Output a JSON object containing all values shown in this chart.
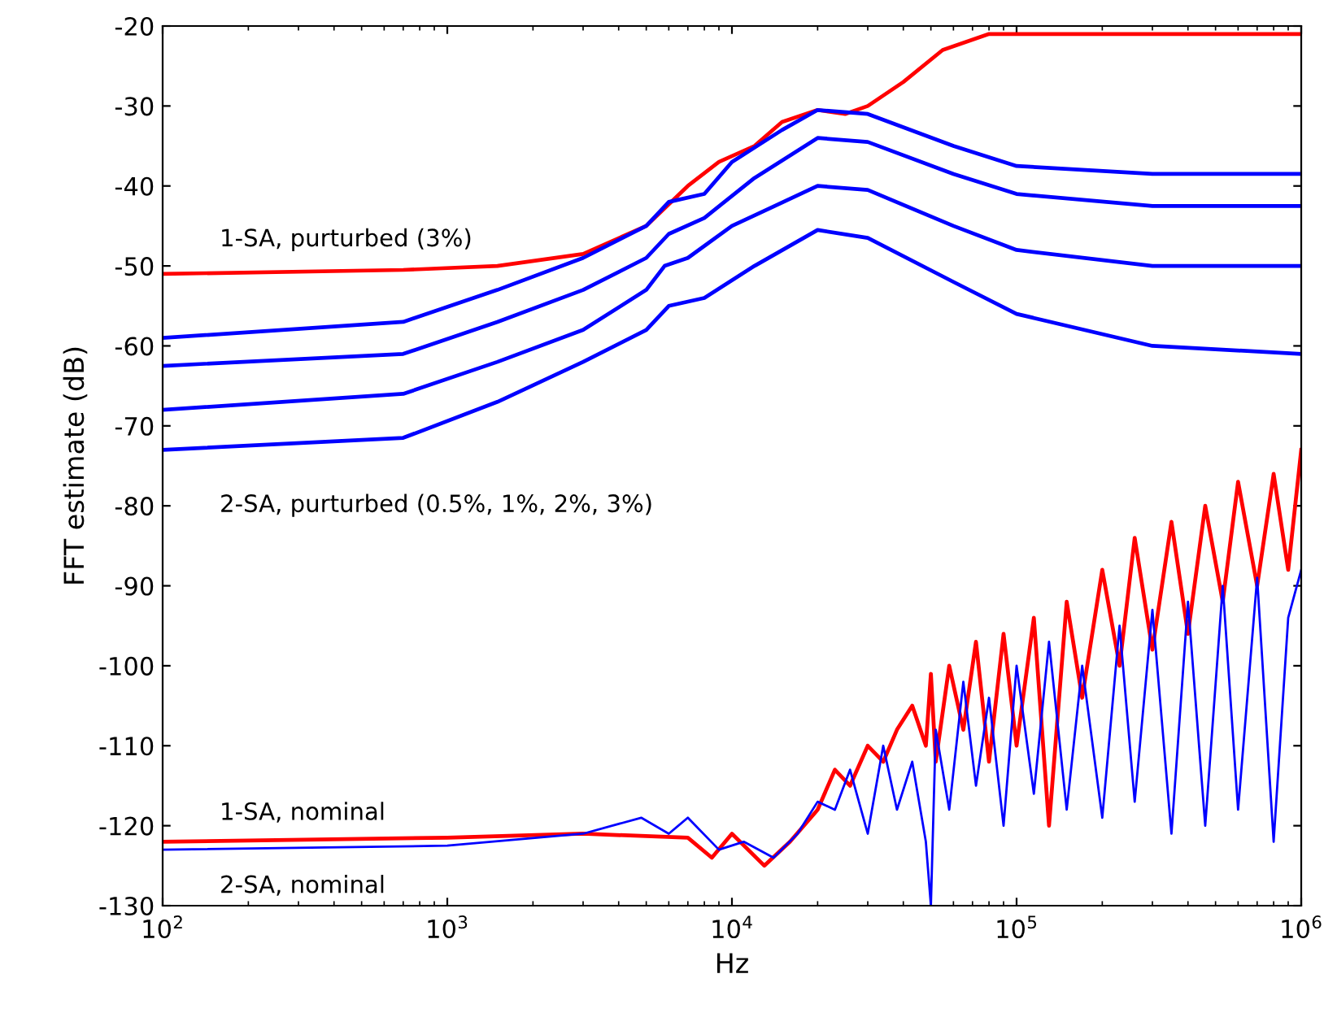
{
  "chart_data": {
    "type": "line",
    "xlabel": "Hz",
    "ylabel": "FFT estimate (dB)",
    "log": "x",
    "grid": false,
    "legend": false,
    "xlim": [
      100,
      1000000
    ],
    "xticks": [
      {
        "value": 100,
        "label": "10$^{2}$"
      },
      {
        "value": 1000,
        "label": "10$^{3}$"
      },
      {
        "value": 10000,
        "label": "10$^{4}$"
      },
      {
        "value": 100000,
        "label": "10$^{5}$"
      },
      {
        "value": 1000000,
        "label": "10$^{6}$"
      }
    ],
    "ylim": [
      -130,
      -20
    ],
    "yticks": [
      -130,
      -120,
      -110,
      -100,
      -90,
      -80,
      -70,
      -60,
      -50,
      -40,
      -30,
      -20
    ],
    "series": [
      {
        "color": "#ff0000",
        "x": [
          100,
          700,
          1500,
          3000,
          5000,
          7000,
          9000,
          12000,
          15000,
          20000,
          25000,
          30000,
          40000,
          55000,
          80000,
          1000000
        ],
        "values": [
          -51,
          -50.5,
          -50,
          -48.5,
          -45,
          -40,
          -37,
          -35,
          -32,
          -30.5,
          -31,
          -30,
          -27,
          -23,
          -21,
          -21
        ]
      },
      {
        "color": "#0000ff",
        "x": [
          100,
          700,
          1500,
          3000,
          5000,
          6000,
          8000,
          10000,
          15000,
          20000,
          30000,
          60000,
          100000,
          300000,
          1000000
        ],
        "values": [
          -59,
          -57,
          -53,
          -49,
          -45,
          -42,
          -41,
          -37,
          -33,
          -30.5,
          -31,
          -35,
          -37.5,
          -38.5,
          -38.5
        ]
      },
      {
        "color": "#0000ff",
        "x": [
          100,
          700,
          1500,
          3000,
          5000,
          6000,
          8000,
          12000,
          20000,
          30000,
          60000,
          100000,
          300000,
          1000000
        ],
        "values": [
          -62.5,
          -61,
          -57,
          -53,
          -49,
          -46,
          -44,
          -39,
          -34,
          -34.5,
          -38.5,
          -41,
          -42.5,
          -42.5
        ]
      },
      {
        "color": "#0000ff",
        "x": [
          100,
          700,
          1500,
          3000,
          5000,
          5800,
          7000,
          10000,
          20000,
          30000,
          60000,
          100000,
          300000,
          1000000
        ],
        "values": [
          -68,
          -66,
          -62,
          -58,
          -53,
          -50,
          -49,
          -45,
          -40,
          -40.5,
          -45,
          -48,
          -50,
          -50
        ]
      },
      {
        "color": "#0000ff",
        "x": [
          100,
          700,
          1500,
          3000,
          5000,
          6000,
          8000,
          12000,
          20000,
          30000,
          60000,
          100000,
          300000,
          1000000
        ],
        "values": [
          -73,
          -71.5,
          -67,
          -62,
          -58,
          -55,
          -54,
          -50,
          -45.5,
          -46.5,
          -52,
          -56,
          -60,
          -61
        ]
      },
      {
        "color": "#ff0000",
        "x": [
          100,
          1000,
          3000,
          7000,
          8500,
          10000,
          13000,
          16000,
          20000,
          23000,
          26000,
          30000,
          34000,
          38000,
          43000,
          48000,
          50000,
          52000,
          58000,
          65000,
          72000,
          80000,
          90000,
          100000,
          115000,
          130000,
          150000,
          170000,
          200000,
          230000,
          260000,
          300000,
          350000,
          400000,
          460000,
          530000,
          600000,
          700000,
          800000,
          900000,
          1000000
        ],
        "values": [
          -122,
          -121.5,
          -121,
          -121.5,
          -124,
          -121,
          -125,
          -122,
          -118,
          -113,
          -115,
          -110,
          -112,
          -108,
          -105,
          -110,
          -101,
          -112,
          -100,
          -108,
          -97,
          -112,
          -96,
          -110,
          -94,
          -120,
          -92,
          -104,
          -88,
          -100,
          -84,
          -98,
          -82,
          -96,
          -80,
          -92,
          -77,
          -90,
          -76,
          -88,
          -73
        ]
      },
      {
        "color": "#0000ff",
        "x": [
          100,
          1000,
          3000,
          4800,
          6000,
          7000,
          9000,
          11000,
          14000,
          17000,
          20000,
          23000,
          26000,
          30000,
          34000,
          38000,
          43000,
          48000,
          50000,
          52000,
          58000,
          65000,
          72000,
          80000,
          90000,
          100000,
          115000,
          130000,
          150000,
          170000,
          200000,
          230000,
          260000,
          300000,
          350000,
          400000,
          460000,
          530000,
          600000,
          700000,
          800000,
          900000,
          1000000
        ],
        "values": [
          -123,
          -122.5,
          -121,
          -119,
          -121,
          -119,
          -123,
          -122,
          -124,
          -121,
          -117,
          -118,
          -113,
          -121,
          -110,
          -118,
          -112,
          -122,
          -130,
          -108,
          -118,
          -102,
          -115,
          -104,
          -120,
          -100,
          -116,
          -97,
          -118,
          -100,
          -119,
          -95,
          -117,
          -93,
          -121,
          -92,
          -120,
          -90,
          -118,
          -89,
          -122,
          -94,
          -88
        ]
      }
    ],
    "annotations": [
      "1-SA, purturbed (3%)",
      "2-SA, purturbed (0.5%, 1%, 2%, 3%)",
      "1-SA, nominal",
      "2-SA, nominal"
    ]
  }
}
